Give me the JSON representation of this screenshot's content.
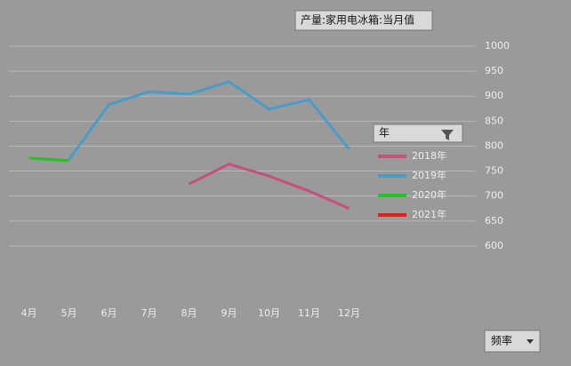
{
  "chart_data": {
    "type": "line",
    "title": "产量:家用电冰箱:当月值",
    "filter_button": "年",
    "frequency_button": "频率",
    "categories": [
      "4月",
      "5月",
      "6月",
      "7月",
      "8月",
      "9月",
      "10月",
      "11月",
      "12月"
    ],
    "series": [
      {
        "name": "2018年",
        "color": "#c4507e",
        "values": [
          null,
          null,
          null,
          null,
          724,
          764,
          740,
          710,
          675
        ]
      },
      {
        "name": "2019年",
        "color": "#4a9cc8",
        "values": [
          null,
          773,
          883,
          909,
          904,
          929,
          874,
          893,
          794
        ]
      },
      {
        "name": "2020年",
        "color": "#22c322",
        "values": [
          776,
          771,
          null,
          null,
          null,
          null,
          null,
          null,
          null
        ]
      },
      {
        "name": "2021年",
        "color": "#e02020",
        "values": [
          null,
          null,
          null,
          null,
          null,
          null,
          null,
          null,
          null
        ]
      }
    ],
    "ylim": [
      550,
      1000
    ],
    "yticks": [
      600,
      650,
      700,
      750,
      800,
      850,
      900,
      950,
      1000
    ],
    "grid": true,
    "legend": "right"
  }
}
